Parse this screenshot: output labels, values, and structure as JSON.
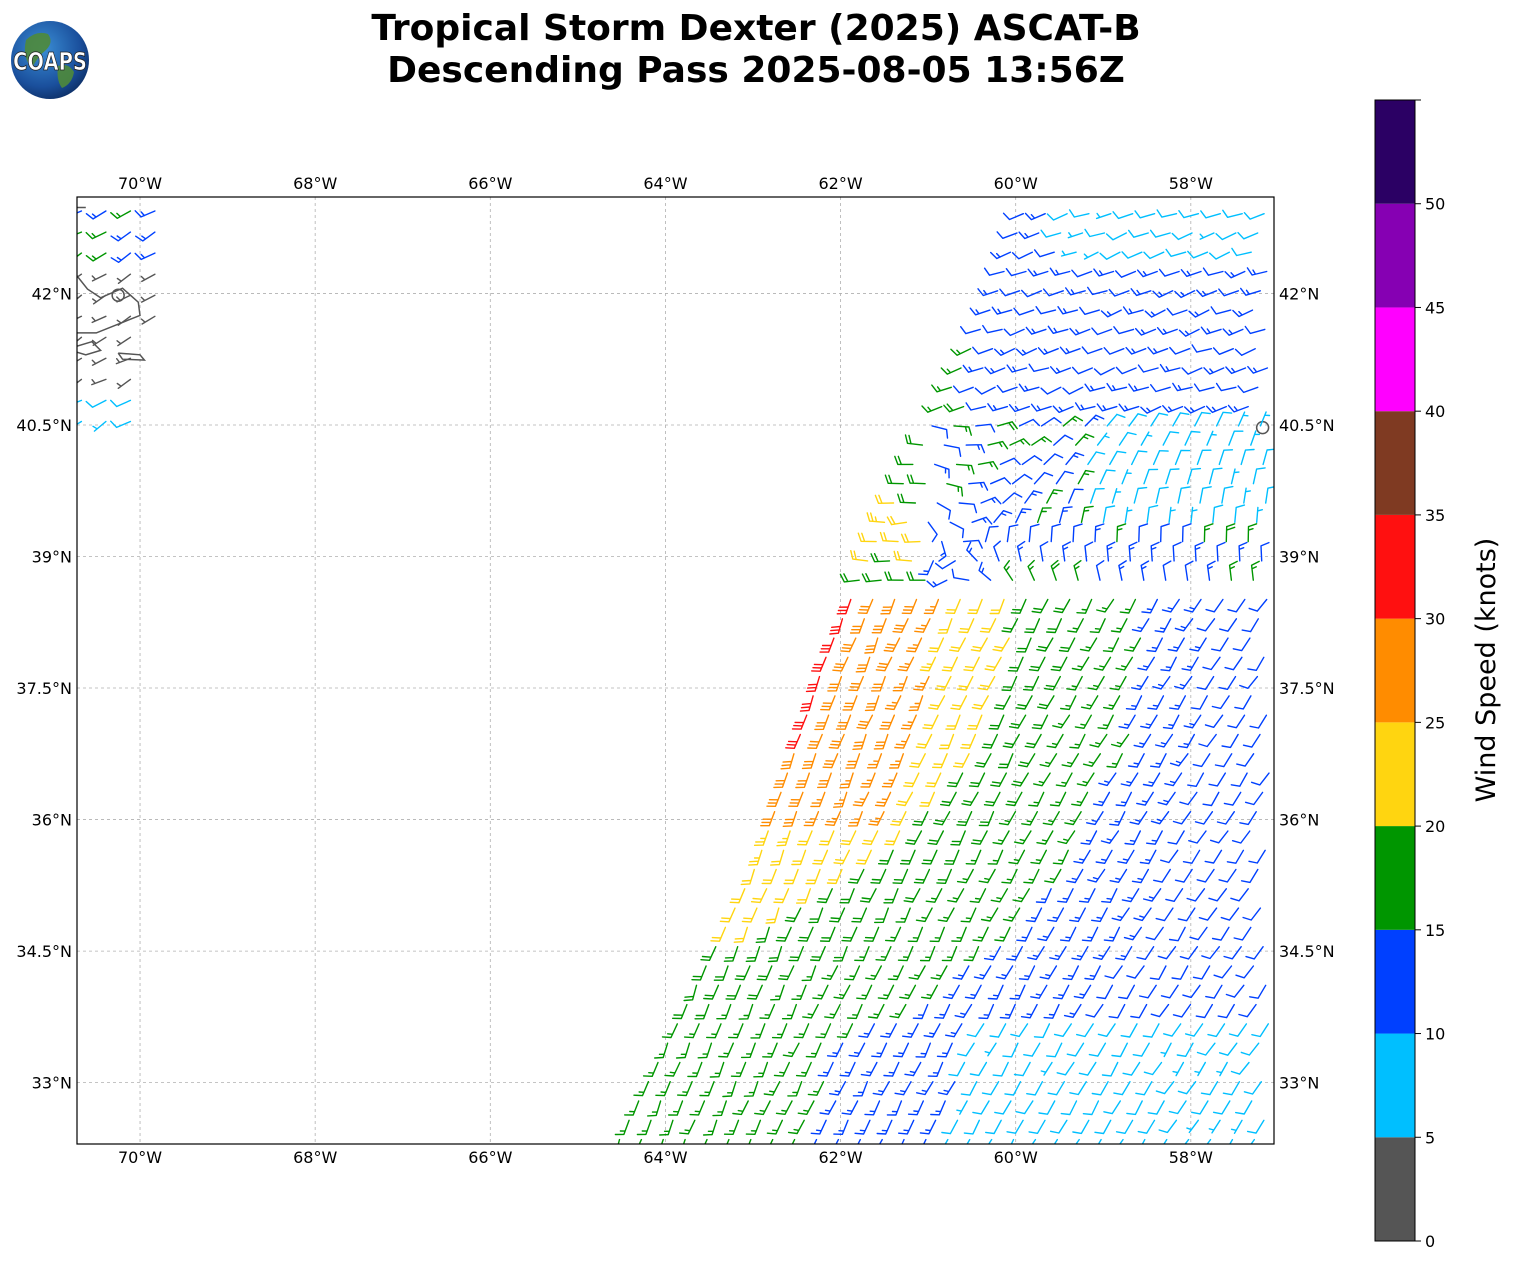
{
  "header": {
    "title_line1": "Tropical Storm Dexter (2025) ASCAT-B",
    "title_line2": "Descending Pass 2025-08-05 13:56Z",
    "logo_text": "COAPS"
  },
  "map": {
    "lon_range": [
      -70.72,
      -57.05
    ],
    "lat_range": [
      32.3,
      43.1
    ],
    "lon_ticks": [
      {
        "value": -70,
        "label": "70°W"
      },
      {
        "value": -68,
        "label": "68°W"
      },
      {
        "value": -66,
        "label": "66°W"
      },
      {
        "value": -64,
        "label": "64°W"
      },
      {
        "value": -62,
        "label": "62°W"
      },
      {
        "value": -60,
        "label": "60°W"
      },
      {
        "value": -58,
        "label": "58°W"
      }
    ],
    "lat_ticks": [
      {
        "value": 42,
        "label": "42°N"
      },
      {
        "value": 40.5,
        "label": "40.5°N"
      },
      {
        "value": 39,
        "label": "39°N"
      },
      {
        "value": 37.5,
        "label": "37.5°N"
      },
      {
        "value": 36,
        "label": "36°N"
      },
      {
        "value": 34.5,
        "label": "34.5°N"
      },
      {
        "value": 33,
        "label": "33°N"
      }
    ],
    "grid": true,
    "coast_color": "#555555"
  },
  "colorbar": {
    "label": "Wind Speed (knots)",
    "min": 0,
    "max": 55,
    "bins": [
      {
        "from": 0,
        "to": 5,
        "color": "#555555"
      },
      {
        "from": 5,
        "to": 10,
        "color": "#00bfff"
      },
      {
        "from": 10,
        "to": 15,
        "color": "#0040ff"
      },
      {
        "from": 15,
        "to": 20,
        "color": "#009600"
      },
      {
        "from": 20,
        "to": 25,
        "color": "#ffd510"
      },
      {
        "from": 25,
        "to": 30,
        "color": "#ff8c00"
      },
      {
        "from": 30,
        "to": 35,
        "color": "#ff1010"
      },
      {
        "from": 35,
        "to": 40,
        "color": "#7f3a22"
      },
      {
        "from": 40,
        "to": 45,
        "color": "#ff00ff"
      },
      {
        "from": 45,
        "to": 50,
        "color": "#8600b3"
      },
      {
        "from": 50,
        "to": 55,
        "color": "#2b0064"
      }
    ],
    "ticks": [
      {
        "value": 0,
        "label": "0"
      },
      {
        "value": 5,
        "label": "5"
      },
      {
        "value": 10,
        "label": "10"
      },
      {
        "value": 15,
        "label": "15"
      },
      {
        "value": 20,
        "label": "20"
      },
      {
        "value": 25,
        "label": "25"
      },
      {
        "value": 30,
        "label": "30"
      },
      {
        "value": 35,
        "label": "35"
      },
      {
        "value": 40,
        "label": "40"
      },
      {
        "value": 45,
        "label": "45"
      },
      {
        "value": 50,
        "label": "50"
      }
    ]
  },
  "wind_field": {
    "swath_east": {
      "west_edge": [
        [
          -64.6,
          32.3
        ],
        [
          -63.0,
          35.5
        ],
        [
          -62.2,
          37.9
        ],
        [
          -61.5,
          39.5
        ],
        [
          -60.3,
          41.9
        ],
        [
          -59.9,
          43.1
        ]
      ],
      "lon_east": -57.05
    },
    "swath_west": {
      "east_edge": [
        [
          -70.72,
          40.3
        ],
        [
          -70.1,
          40.5
        ],
        [
          -69.7,
          42.3
        ],
        [
          -69.8,
          43.1
        ]
      ]
    },
    "center": [
      -60.6,
      39.1
    ]
  }
}
